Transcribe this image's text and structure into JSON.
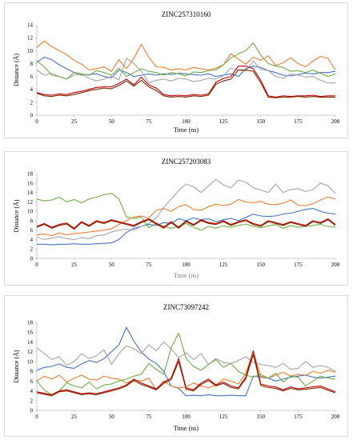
{
  "chart_data": [
    {
      "type": "line",
      "title": "ZINC257310160",
      "xlabel": "Time (ns)",
      "ylabel": "Distance (Å)",
      "xlim": [
        0,
        200
      ],
      "ylim": [
        0,
        14
      ],
      "xticks": [
        "0",
        "25",
        "50",
        "75",
        "100",
        "125",
        "150",
        "175",
        "200"
      ],
      "yticks": [
        "0",
        "2",
        "4",
        "6",
        "8",
        "10",
        "12",
        "14"
      ],
      "grid": false,
      "legend": "none",
      "xlabel_color": "#000000",
      "x": [
        0,
        5,
        10,
        15,
        20,
        25,
        30,
        35,
        40,
        45,
        50,
        55,
        60,
        65,
        70,
        75,
        80,
        85,
        90,
        95,
        100,
        105,
        110,
        115,
        120,
        125,
        130,
        135,
        140,
        145,
        150,
        155,
        160,
        165,
        170,
        175,
        180,
        185,
        190,
        195,
        200
      ],
      "series": [
        {
          "color": "#4472c4",
          "values": [
            8.2,
            9,
            8.6,
            7.8,
            7.2,
            6.6,
            6.2,
            6.3,
            6.4,
            6.0,
            5.8,
            7.0,
            6.6,
            6.0,
            6.2,
            6.4,
            6.2,
            6.4,
            6.3,
            6.5,
            6.4,
            6.3,
            6.2,
            6.4,
            6.0,
            6.2,
            6.4,
            6.0,
            7.2,
            7.6,
            7.4,
            6.9,
            6.6,
            6.2,
            6.1,
            6.3,
            6.5,
            6.4,
            6.6,
            6.6,
            6.8
          ]
        },
        {
          "color": "#ed7d31",
          "values": [
            10.5,
            11.5,
            10.6,
            10.0,
            9.4,
            8.5,
            7.9,
            7.0,
            7.2,
            7.5,
            6.8,
            8.6,
            7.2,
            8.8,
            11.0,
            9.0,
            7.5,
            7.4,
            7.0,
            7.2,
            7.0,
            7.4,
            7.2,
            7.0,
            7.3,
            7.8,
            9.5,
            8.7,
            7.9,
            9.0,
            8.5,
            9.2,
            7.7,
            8.1,
            8.9,
            8.0,
            7.5,
            8.4,
            9.1,
            8.8,
            7.0
          ]
        },
        {
          "color": "#a5a5a5",
          "values": [
            7.0,
            6.2,
            6.5,
            6.0,
            5.6,
            6.2,
            6.4,
            5.7,
            5.3,
            5.6,
            6.0,
            5.5,
            8.8,
            8.0,
            6.8,
            5.0,
            5.4,
            5.6,
            5.3,
            5.7,
            5.6,
            5.2,
            5.4,
            5.7,
            5.6,
            6.1,
            7.3,
            7.0,
            6.8,
            8.4,
            7.1,
            6.9,
            6.0,
            5.7,
            6.4,
            6.2,
            5.9,
            6.0,
            5.4,
            5.0,
            5.0
          ]
        },
        {
          "color": "#70ad47",
          "values": [
            8.4,
            7.5,
            6.2,
            6.0,
            5.6,
            6.6,
            6.4,
            6.2,
            6.9,
            6.6,
            6.2,
            7.3,
            6.0,
            6.6,
            7.2,
            6.8,
            6.6,
            6.2,
            6.6,
            6.4,
            6.1,
            6.7,
            6.6,
            6.9,
            7.0,
            7.8,
            8.9,
            9.5,
            10.0,
            11.2,
            9.3,
            8.0,
            7.6,
            7.4,
            6.8,
            6.9,
            6.6,
            7.0,
            6.5,
            6.0,
            6.4
          ]
        },
        {
          "color": "#c00000",
          "values": [
            3.5,
            3.2,
            3.1,
            3.3,
            3.2,
            3.5,
            3.7,
            4.0,
            4.3,
            4.4,
            4.4,
            4.9,
            5.6,
            4.7,
            5.9,
            4.7,
            4.2,
            3.2,
            3.0,
            3.1,
            3.0,
            3.2,
            3.1,
            3.3,
            5.1,
            5.7,
            6.0,
            7.6,
            7.6,
            7.2,
            5.4,
            3.0,
            2.8,
            3.0,
            2.9,
            3.0,
            3.0,
            3.1,
            2.9,
            3.0,
            3.0
          ]
        },
        {
          "color": "#7b2c00",
          "values": [
            3.4,
            3.0,
            2.9,
            3.1,
            3.0,
            3.2,
            3.5,
            3.8,
            4.0,
            4.2,
            4.1,
            4.6,
            5.3,
            4.5,
            5.4,
            4.4,
            3.8,
            3.0,
            2.8,
            2.9,
            2.8,
            3.0,
            2.9,
            3.1,
            4.8,
            5.3,
            5.6,
            7.0,
            7.0,
            6.8,
            5.0,
            2.8,
            2.7,
            2.8,
            2.8,
            2.9,
            2.8,
            2.9,
            2.8,
            2.8,
            2.8
          ]
        }
      ]
    },
    {
      "type": "line",
      "title": "ZINC257203083",
      "xlabel": "Time (ns)",
      "ylabel": "Distance (Å)",
      "xlim": [
        0,
        200
      ],
      "ylim": [
        0,
        18
      ],
      "xticks": [
        "0",
        "25",
        "50",
        "75",
        "100",
        "125",
        "150",
        "175",
        "200"
      ],
      "yticks": [
        "0",
        "2",
        "4",
        "6",
        "8",
        "10",
        "12",
        "14",
        "16",
        "18"
      ],
      "grid": false,
      "legend": "none",
      "xlabel_color": "#7f7f7f",
      "x": [
        0,
        5,
        10,
        15,
        20,
        25,
        30,
        35,
        40,
        45,
        50,
        55,
        60,
        65,
        70,
        75,
        80,
        85,
        90,
        95,
        100,
        105,
        110,
        115,
        120,
        125,
        130,
        135,
        140,
        145,
        150,
        155,
        160,
        165,
        170,
        175,
        180,
        185,
        190,
        195,
        200
      ],
      "series": [
        {
          "color": "#4472c4",
          "values": [
            3.0,
            3.0,
            2.9,
            3.0,
            3.0,
            3.1,
            3.0,
            3.0,
            3.1,
            3.2,
            3.3,
            4.0,
            5.5,
            6.4,
            6.8,
            7.2,
            7.0,
            7.6,
            7.4,
            8.4,
            8.0,
            8.6,
            8.2,
            8.4,
            7.8,
            8.2,
            8.5,
            8.0,
            8.7,
            9.4,
            9.0,
            8.9,
            9.0,
            9.4,
            9.6,
            10.0,
            10.4,
            10.6,
            10.0,
            9.6,
            9.4
          ]
        },
        {
          "color": "#ed7d31",
          "values": [
            5.0,
            5.2,
            4.8,
            5.4,
            5.0,
            5.3,
            5.4,
            5.6,
            5.8,
            6.0,
            6.3,
            7.2,
            8.0,
            8.8,
            9.0,
            8.6,
            10.2,
            10.6,
            10.0,
            11.0,
            11.4,
            10.4,
            10.2,
            11.0,
            11.5,
            11.2,
            11.5,
            12.5,
            12.0,
            11.8,
            12.1,
            11.5,
            11.4,
            11.7,
            12.4,
            11.3,
            11.2,
            11.6,
            12.4,
            13.0,
            12.6
          ]
        },
        {
          "color": "#a5a5a5",
          "values": [
            4.5,
            4.0,
            4.3,
            4.6,
            4.2,
            4.0,
            4.4,
            4.2,
            4.8,
            5.0,
            5.6,
            6.0,
            6.2,
            6.0,
            6.8,
            7.4,
            8.6,
            10.8,
            12.6,
            14.4,
            15.8,
            15.2,
            14.0,
            15.4,
            16.8,
            15.6,
            15.0,
            16.6,
            16.2,
            15.0,
            14.5,
            14.0,
            15.8,
            14.0,
            14.6,
            14.8,
            14.2,
            14.6,
            16.0,
            15.4,
            13.8
          ]
        },
        {
          "color": "#70ad47",
          "values": [
            12.6,
            12.2,
            12.4,
            13.0,
            12.0,
            12.5,
            11.8,
            12.6,
            13.0,
            13.5,
            13.8,
            12.6,
            8.8,
            8.5,
            8.8,
            6.5,
            7.4,
            6.8,
            6.4,
            6.8,
            7.4,
            6.6,
            6.0,
            6.8,
            6.4,
            6.9,
            6.6,
            7.0,
            7.3,
            6.8,
            6.5,
            6.9,
            7.2,
            6.4,
            7.0,
            6.6,
            6.8,
            7.0,
            7.2,
            6.8,
            6.6
          ]
        },
        {
          "color": "#c00000",
          "values": [
            6.8,
            7.4,
            6.6,
            7.2,
            7.5,
            6.4,
            7.8,
            7.0,
            8.0,
            7.6,
            8.2,
            7.8,
            7.4,
            7.0,
            7.8,
            8.4,
            7.5,
            6.6,
            7.8,
            6.6,
            8.0,
            7.2,
            8.2,
            7.6,
            7.4,
            8.0,
            7.2,
            7.8,
            8.2,
            7.4,
            7.0,
            8.0,
            7.6,
            7.2,
            7.8,
            7.4,
            7.0,
            8.0,
            7.6,
            8.4,
            7.2
          ]
        },
        {
          "color": "#7b2c00",
          "values": [
            6.6,
            7.2,
            6.4,
            7.0,
            7.3,
            6.2,
            7.6,
            6.8,
            7.8,
            7.4,
            8.0,
            7.6,
            7.2,
            6.8,
            7.6,
            8.2,
            7.3,
            6.4,
            7.6,
            6.4,
            7.8,
            7.0,
            8.0,
            7.4,
            7.2,
            7.8,
            7.0,
            7.6,
            8.0,
            7.2,
            6.8,
            7.8,
            7.4,
            7.0,
            7.6,
            7.2,
            6.8,
            7.8,
            7.4,
            8.2,
            7.0
          ]
        }
      ]
    },
    {
      "type": "line",
      "title": "ZINC73097242",
      "xlabel": "Time (ns)",
      "ylabel": "Distance (Å)",
      "xlim": [
        0,
        200
      ],
      "ylim": [
        0,
        18
      ],
      "xticks": [
        "0",
        "25",
        "50",
        "75",
        "100",
        "125",
        "150",
        "175",
        "200"
      ],
      "yticks": [
        "0",
        "2",
        "4",
        "6",
        "8",
        "10",
        "12",
        "14",
        "16",
        "18"
      ],
      "grid": false,
      "legend": "none",
      "xlabel_color": "#000000",
      "x": [
        0,
        5,
        10,
        15,
        20,
        25,
        30,
        35,
        40,
        45,
        50,
        55,
        60,
        65,
        70,
        75,
        80,
        85,
        90,
        95,
        100,
        105,
        110,
        115,
        120,
        125,
        130,
        135,
        140,
        145,
        150,
        155,
        160,
        165,
        170,
        175,
        180,
        185,
        190,
        195,
        200
      ],
      "series": [
        {
          "color": "#4472c4",
          "values": [
            8.2,
            8.8,
            9.0,
            9.5,
            8.8,
            8.6,
            9.5,
            10.2,
            9.8,
            10.6,
            12.0,
            13.4,
            17.0,
            14.2,
            12.0,
            10.5,
            9.6,
            8.0,
            5.0,
            4.5,
            3.0,
            3.1,
            3.0,
            3.2,
            3.0,
            3.0,
            3.1,
            3.0,
            3.0,
            7.0,
            6.8,
            6.6,
            6.0,
            6.4,
            6.8,
            7.0,
            7.2,
            6.8,
            6.6,
            6.8,
            7.0
          ]
        },
        {
          "color": "#ed7d31",
          "values": [
            6.0,
            7.0,
            6.4,
            7.2,
            5.8,
            6.6,
            7.2,
            6.4,
            6.2,
            7.0,
            6.6,
            6.4,
            5.6,
            6.2,
            6.0,
            6.6,
            4.2,
            6.0,
            5.0,
            4.6,
            4.8,
            5.6,
            5.0,
            4.6,
            5.2,
            6.4,
            6.0,
            5.4,
            7.6,
            12.0,
            7.0,
            6.6,
            7.2,
            7.8,
            7.0,
            7.4,
            7.2,
            8.0,
            7.6,
            8.2,
            7.8
          ]
        },
        {
          "color": "#a5a5a5",
          "values": [
            12.8,
            11.6,
            10.4,
            11.0,
            9.2,
            10.0,
            11.6,
            10.6,
            11.2,
            12.4,
            9.4,
            11.6,
            13.2,
            12.6,
            11.6,
            13.4,
            12.2,
            14.0,
            12.6,
            10.8,
            11.8,
            10.4,
            11.6,
            9.4,
            10.6,
            9.8,
            9.6,
            10.2,
            11.0,
            9.8,
            9.4,
            9.2,
            8.8,
            9.6,
            8.4,
            8.6,
            10.0,
            8.8,
            9.2,
            8.8,
            8.0
          ]
        },
        {
          "color": "#70ad47",
          "values": [
            6.0,
            4.2,
            3.2,
            4.0,
            5.6,
            5.0,
            4.6,
            5.8,
            4.4,
            5.2,
            5.4,
            6.0,
            6.4,
            7.0,
            7.4,
            9.6,
            8.4,
            7.4,
            12.8,
            15.8,
            10.6,
            9.0,
            8.2,
            9.4,
            10.4,
            8.8,
            9.6,
            8.0,
            7.2,
            6.8,
            7.4,
            6.6,
            7.6,
            5.8,
            7.0,
            6.8,
            5.0,
            6.0,
            7.0,
            6.6,
            6.4
          ]
        },
        {
          "color": "#c00000",
          "values": [
            3.8,
            3.5,
            3.2,
            4.0,
            4.2,
            3.8,
            3.4,
            3.6,
            3.4,
            3.8,
            4.2,
            4.6,
            5.2,
            6.4,
            5.6,
            5.0,
            4.4,
            5.8,
            6.6,
            10.6,
            4.6,
            4.2,
            5.6,
            6.4,
            5.2,
            5.8,
            5.0,
            4.6,
            6.8,
            12.2,
            5.4,
            5.0,
            4.8,
            4.2,
            4.8,
            4.4,
            4.6,
            4.8,
            5.0,
            4.4,
            3.8
          ]
        },
        {
          "color": "#7b2c00",
          "values": [
            3.6,
            3.3,
            3.0,
            3.8,
            4.0,
            3.6,
            3.2,
            3.4,
            3.2,
            3.6,
            4.0,
            4.4,
            5.0,
            6.1,
            5.3,
            4.8,
            4.2,
            5.5,
            6.3,
            10.0,
            4.3,
            4.0,
            5.3,
            6.1,
            5.0,
            5.5,
            4.7,
            4.4,
            6.5,
            11.4,
            5.1,
            4.7,
            4.5,
            4.0,
            4.5,
            4.2,
            4.3,
            4.5,
            4.7,
            4.1,
            3.6
          ]
        }
      ]
    }
  ]
}
